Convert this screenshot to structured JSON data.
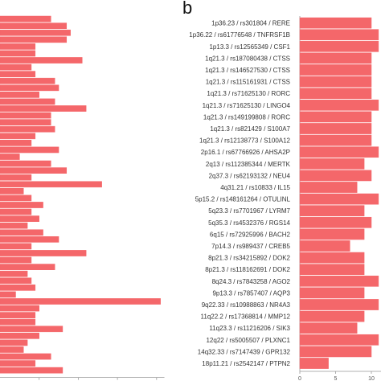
{
  "panel_b": {
    "letter": "b"
  },
  "colors": {
    "bar_fill": "#f4676a",
    "bar_stroke": "#f4676a",
    "axis": "#999999"
  },
  "chart_data": [
    {
      "type": "bar",
      "orientation": "horizontal",
      "panel": "a",
      "xlim": [
        0,
        42
      ],
      "xticks": [
        "10",
        "20",
        "30",
        "40"
      ],
      "values": [
        13,
        17,
        18,
        17,
        9,
        9,
        21,
        8,
        9,
        14,
        15,
        10,
        14,
        22,
        13,
        13,
        14,
        9,
        8,
        15,
        5,
        13,
        17,
        8,
        26,
        6,
        8,
        11,
        8,
        10,
        7,
        11,
        15,
        8,
        22,
        8,
        14,
        7,
        8,
        9,
        4,
        41,
        10,
        9,
        9,
        16,
        10,
        7,
        6,
        13,
        9,
        16
      ]
    },
    {
      "type": "bar",
      "orientation": "horizontal",
      "panel": "b",
      "xlim": [
        0,
        12
      ],
      "xticks": [
        "0",
        "5",
        "10"
      ],
      "categories": [
        "1p36.23  /  rs301804  /  RERE",
        "1p36.22  /  rs61776548  /  TNFRSF1B",
        "1p13.3  /  rs12565349  /  CSF1",
        "1q21.3  /  rs187080438  /  CTSS",
        "1q21.3  /  rs146527530  /  CTSS",
        "1q21.3  /  rs115161931  /  CTSS",
        "1q21.3  /  rs71625130  /  RORC",
        "1q21.3  /  rs71625130  /  LINGO4",
        "1q21.3  /  rs149199808  /  RORC",
        "1q21.3  /  rs821429  /  S100A7",
        "1q21.3  /  rs12138773  /  S100A12",
        "2p16.1  /  rs67766926  /  AHSA2P",
        "2q13  /  rs112385344  /  MERTK",
        "2q37.3  /  rs62193132  /  NEU4",
        "4q31.21  /  rs10833  /  IL15",
        "5p15.2  /  rs148161264  /  OTULINL",
        "5q23.3  /  rs7701967  /  LYRM7",
        "5q35.3  /  rs4532376  /  RGS14",
        "6q15  /  rs72925996  /  BACH2",
        "7p14.3  /  rs989437  /  CREB5",
        "8p21.3  /  rs34215892  /  DOK2",
        "8p21.3  /  rs118162691  /  DOK2",
        "8q24.3  /  rs7843258  /  AGO2",
        "9p13.3  /  rs7857407  /  AQP3",
        "9q22.33  /  rs10988863  /  NR4A3",
        "11q22.2  /  rs17368814  /  MMP12",
        "11q23.3  /  rs11216206  /  SIK3",
        "12q22  /  rs5005507  /  PLXNC1",
        "14q32.33  /  rs7147439  /  GPR132",
        "18p11.21  /  rs2542147  /  PTPN2"
      ],
      "values": [
        10,
        11,
        11,
        10,
        10,
        10,
        10,
        11,
        10,
        10,
        10,
        11,
        9,
        10,
        8,
        11,
        9,
        10,
        9,
        7,
        9,
        9,
        11,
        9,
        11,
        9,
        8,
        11,
        10,
        4
      ]
    }
  ]
}
